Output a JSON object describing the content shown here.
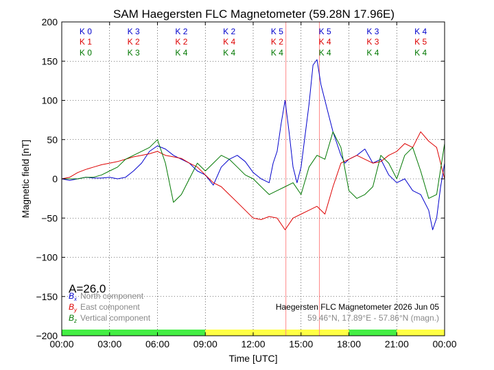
{
  "chart_data": {
    "type": "line",
    "title": "SAM Haegersten FLC Magnetometer (59.28N 17.96E)",
    "xlabel": "Time [UTC]",
    "ylabel": "Magnetic field [nT]",
    "xlim": [
      0,
      24
    ],
    "ylim": [
      -200,
      200
    ],
    "x_ticks": [
      "00:00",
      "03:00",
      "06:00",
      "09:00",
      "12:00",
      "15:00",
      "18:00",
      "21:00",
      "00:00"
    ],
    "y_ticks": [
      200,
      150,
      100,
      50,
      0,
      -50,
      -100,
      -150,
      -200
    ],
    "grid": true,
    "k_indices": {
      "bx": [
        "K 0",
        "K 3",
        "K 2",
        "K 2",
        "K 5",
        "K 5",
        "K 3",
        "K 4"
      ],
      "by": [
        "K 1",
        "K 2",
        "K 2",
        "K 4",
        "K 2",
        "K 4",
        "K 3",
        "K 5"
      ],
      "bz": [
        "K 0",
        "K 3",
        "K 4",
        "K 4",
        "K 4",
        "K 4",
        "K 4",
        "K 4"
      ]
    },
    "a_index": "A=26.0",
    "legend": [
      {
        "symbol": "B",
        "sub": "x",
        "label": "North component",
        "color": "#0000cc"
      },
      {
        "symbol": "B",
        "sub": "y",
        "label": "East component",
        "color": "#dd0000"
      },
      {
        "symbol": "B",
        "sub": "z",
        "label": "Vertical component",
        "color": "#007700"
      }
    ],
    "station_line1": "Haegersten FLC Magnetometer 2026 Jun 05",
    "station_line2": "59.46°N, 17.89°E - 57.86°N (magn.)",
    "vertical_markers": [
      14.05,
      16.15
    ],
    "activity_bar": [
      {
        "start": 0,
        "end": 9,
        "color": "#44ee44"
      },
      {
        "start": 9,
        "end": 18,
        "color": "#ffff44"
      },
      {
        "start": 18,
        "end": 21,
        "color": "#44ee44"
      },
      {
        "start": 21,
        "end": 24,
        "color": "#ffff44"
      }
    ],
    "series": [
      {
        "name": "North component",
        "color": "#0000cc",
        "x": [
          0,
          0.5,
          1,
          1.5,
          2,
          2.5,
          3,
          3.5,
          4,
          4.5,
          5,
          5.5,
          6,
          6.5,
          7,
          7.5,
          8,
          8.5,
          9,
          9.5,
          10,
          10.5,
          11,
          11.5,
          12,
          12.5,
          13,
          13.25,
          13.5,
          13.75,
          14,
          14.25,
          14.5,
          14.75,
          15,
          15.25,
          15.5,
          15.75,
          16,
          16.25,
          16.5,
          16.75,
          17,
          17.25,
          17.5,
          17.75,
          18,
          18.5,
          19,
          19.5,
          20,
          20.5,
          21,
          21.5,
          22,
          22.5,
          23,
          23.25,
          23.5,
          23.75,
          24
        ],
        "y": [
          0,
          -2,
          0,
          2,
          1,
          1,
          2,
          0,
          2,
          10,
          20,
          35,
          42,
          38,
          30,
          25,
          20,
          10,
          5,
          -8,
          15,
          25,
          30,
          22,
          8,
          0,
          -5,
          20,
          35,
          70,
          100,
          60,
          15,
          -5,
          15,
          55,
          95,
          145,
          152,
          120,
          100,
          80,
          60,
          45,
          30,
          20,
          25,
          30,
          38,
          20,
          25,
          5,
          -5,
          0,
          -15,
          -20,
          -40,
          -65,
          -50,
          -10,
          20
        ]
      },
      {
        "name": "East component",
        "color": "#dd0000",
        "x": [
          0,
          0.5,
          1,
          1.5,
          2,
          2.5,
          3,
          3.5,
          4,
          4.5,
          5,
          5.5,
          6,
          6.5,
          7,
          7.5,
          8,
          8.5,
          9,
          9.5,
          10,
          10.5,
          11,
          11.5,
          12,
          12.5,
          13,
          13.5,
          14,
          14.5,
          15,
          15.5,
          16,
          16.5,
          17,
          17.5,
          18,
          18.5,
          19,
          19.5,
          20,
          20.5,
          21,
          21.5,
          22,
          22.5,
          23,
          23.5,
          24
        ],
        "y": [
          0,
          2,
          8,
          12,
          15,
          18,
          20,
          22,
          25,
          28,
          30,
          32,
          35,
          30,
          28,
          26,
          20,
          15,
          5,
          -5,
          -10,
          -20,
          -30,
          -40,
          -50,
          -52,
          -48,
          -50,
          -65,
          -50,
          -45,
          -40,
          -35,
          -45,
          -10,
          20,
          25,
          30,
          25,
          20,
          22,
          30,
          35,
          45,
          40,
          60,
          48,
          40,
          0
        ]
      },
      {
        "name": "Vertical component",
        "color": "#007700",
        "x": [
          0,
          0.5,
          1,
          1.5,
          2,
          2.5,
          3,
          3.5,
          4,
          4.5,
          5,
          5.5,
          6,
          6.5,
          7,
          7.5,
          8,
          8.5,
          9,
          9.5,
          10,
          10.5,
          11,
          11.5,
          12,
          12.5,
          13,
          13.5,
          14,
          14.5,
          15,
          15.5,
          16,
          16.5,
          17,
          17.5,
          18,
          18.5,
          19,
          19.5,
          20,
          20.5,
          21,
          21.5,
          22,
          22.5,
          23,
          23.5,
          24
        ],
        "y": [
          0,
          0,
          0,
          2,
          2,
          5,
          10,
          15,
          25,
          30,
          35,
          40,
          50,
          20,
          -30,
          -20,
          0,
          20,
          10,
          20,
          30,
          25,
          15,
          5,
          0,
          -10,
          -20,
          -15,
          -10,
          -5,
          -20,
          15,
          30,
          25,
          60,
          40,
          -15,
          -25,
          -20,
          -10,
          30,
          20,
          0,
          30,
          40,
          10,
          -25,
          -20,
          45
        ]
      }
    ]
  }
}
